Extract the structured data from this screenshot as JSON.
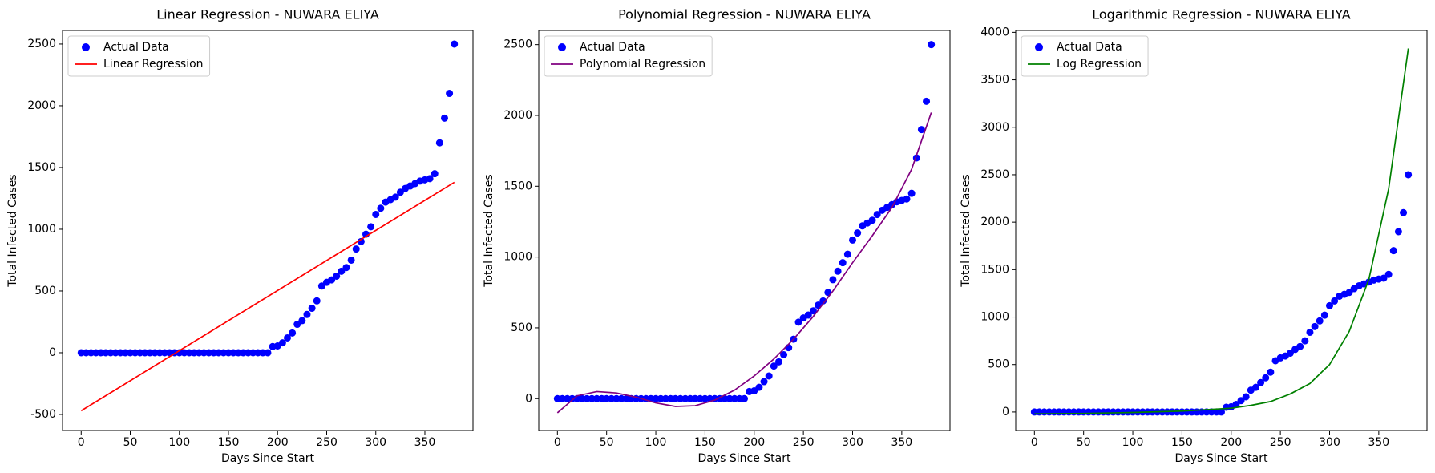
{
  "chart_data": [
    {
      "type": "scatter",
      "title": "Linear Regression - NUWARA ELIYA",
      "xlabel": "Days Since Start",
      "ylabel": "Total Infected Cases",
      "legend": "upper left",
      "xlim": [
        -19,
        399
      ],
      "xticks": [
        0,
        50,
        100,
        150,
        200,
        250,
        300,
        350
      ],
      "ylim": [
        -630,
        2610
      ],
      "yticks": [
        -500,
        0,
        500,
        1000,
        1500,
        2000,
        2500
      ],
      "series": [
        {
          "name": "Actual Data",
          "type": "scatter",
          "color": "#0000ff",
          "x": [
            0,
            5,
            10,
            15,
            20,
            25,
            30,
            35,
            40,
            45,
            50,
            55,
            60,
            65,
            70,
            75,
            80,
            85,
            90,
            95,
            100,
            105,
            110,
            115,
            120,
            125,
            130,
            135,
            140,
            145,
            150,
            155,
            160,
            165,
            170,
            175,
            180,
            185,
            190,
            195,
            200,
            205,
            210,
            215,
            220,
            225,
            230,
            235,
            240,
            245,
            250,
            255,
            260,
            265,
            270,
            275,
            280,
            285,
            290,
            295,
            300,
            305,
            310,
            315,
            320,
            325,
            330,
            335,
            340,
            345,
            350,
            355,
            360,
            365,
            370,
            375,
            380
          ],
          "values": [
            0,
            0,
            0,
            0,
            0,
            0,
            0,
            0,
            0,
            0,
            0,
            0,
            0,
            0,
            0,
            0,
            0,
            0,
            0,
            0,
            0,
            0,
            0,
            0,
            0,
            0,
            0,
            0,
            0,
            0,
            0,
            0,
            0,
            0,
            0,
            0,
            0,
            0,
            0,
            50,
            55,
            80,
            120,
            160,
            230,
            260,
            310,
            360,
            420,
            540,
            570,
            590,
            620,
            660,
            690,
            750,
            840,
            900,
            960,
            1020,
            1120,
            1170,
            1220,
            1240,
            1260,
            1300,
            1330,
            1350,
            1370,
            1390,
            1400,
            1410,
            1450,
            1700,
            1900,
            2100,
            2500
          ]
        },
        {
          "name": "Linear Regression",
          "type": "line",
          "color": "#ff0000",
          "x": [
            0,
            380
          ],
          "values": [
            -470,
            1380
          ]
        }
      ]
    },
    {
      "type": "scatter",
      "title": "Polynomial Regression - NUWARA ELIYA",
      "xlabel": "Days Since Start",
      "ylabel": "Total Infected Cases",
      "legend": "upper left",
      "xlim": [
        -19,
        399
      ],
      "xticks": [
        0,
        50,
        100,
        150,
        200,
        250,
        300,
        350
      ],
      "ylim": [
        -225,
        2600
      ],
      "yticks": [
        0,
        500,
        1000,
        1500,
        2000,
        2500
      ],
      "series": [
        {
          "name": "Actual Data",
          "type": "scatter",
          "color": "#0000ff",
          "x": [
            0,
            5,
            10,
            15,
            20,
            25,
            30,
            35,
            40,
            45,
            50,
            55,
            60,
            65,
            70,
            75,
            80,
            85,
            90,
            95,
            100,
            105,
            110,
            115,
            120,
            125,
            130,
            135,
            140,
            145,
            150,
            155,
            160,
            165,
            170,
            175,
            180,
            185,
            190,
            195,
            200,
            205,
            210,
            215,
            220,
            225,
            230,
            235,
            240,
            245,
            250,
            255,
            260,
            265,
            270,
            275,
            280,
            285,
            290,
            295,
            300,
            305,
            310,
            315,
            320,
            325,
            330,
            335,
            340,
            345,
            350,
            355,
            360,
            365,
            370,
            375,
            380
          ],
          "values": [
            0,
            0,
            0,
            0,
            0,
            0,
            0,
            0,
            0,
            0,
            0,
            0,
            0,
            0,
            0,
            0,
            0,
            0,
            0,
            0,
            0,
            0,
            0,
            0,
            0,
            0,
            0,
            0,
            0,
            0,
            0,
            0,
            0,
            0,
            0,
            0,
            0,
            0,
            0,
            50,
            55,
            80,
            120,
            160,
            230,
            260,
            310,
            360,
            420,
            540,
            570,
            590,
            620,
            660,
            690,
            750,
            840,
            900,
            960,
            1020,
            1120,
            1170,
            1220,
            1240,
            1260,
            1300,
            1330,
            1350,
            1370,
            1390,
            1400,
            1410,
            1450,
            1700,
            1900,
            2100,
            2500
          ]
        },
        {
          "name": "Polynomial Regression",
          "type": "line",
          "color": "#800080",
          "x": [
            0,
            20,
            40,
            60,
            80,
            100,
            120,
            140,
            160,
            180,
            200,
            220,
            240,
            260,
            280,
            300,
            320,
            340,
            360,
            380
          ],
          "values": [
            -100,
            20,
            50,
            40,
            10,
            -30,
            -55,
            -50,
            -10,
            60,
            160,
            280,
            420,
            580,
            760,
            960,
            1150,
            1350,
            1620,
            2020
          ]
        }
      ]
    },
    {
      "type": "scatter",
      "title": "Logarithmic Regression - NUWARA ELIYA",
      "xlabel": "Days Since Start",
      "ylabel": "Total Infected Cases",
      "legend": "upper left",
      "xlim": [
        -19,
        399
      ],
      "xticks": [
        0,
        50,
        100,
        150,
        200,
        250,
        300,
        350
      ],
      "ylim": [
        -195,
        4020
      ],
      "yticks": [
        0,
        500,
        1000,
        1500,
        2000,
        2500,
        3000,
        3500,
        4000
      ],
      "series": [
        {
          "name": "Actual Data",
          "type": "scatter",
          "color": "#0000ff",
          "x": [
            0,
            5,
            10,
            15,
            20,
            25,
            30,
            35,
            40,
            45,
            50,
            55,
            60,
            65,
            70,
            75,
            80,
            85,
            90,
            95,
            100,
            105,
            110,
            115,
            120,
            125,
            130,
            135,
            140,
            145,
            150,
            155,
            160,
            165,
            170,
            175,
            180,
            185,
            190,
            195,
            200,
            205,
            210,
            215,
            220,
            225,
            230,
            235,
            240,
            245,
            250,
            255,
            260,
            265,
            270,
            275,
            280,
            285,
            290,
            295,
            300,
            305,
            310,
            315,
            320,
            325,
            330,
            335,
            340,
            345,
            350,
            355,
            360,
            365,
            370,
            375,
            380
          ],
          "values": [
            0,
            0,
            0,
            0,
            0,
            0,
            0,
            0,
            0,
            0,
            0,
            0,
            0,
            0,
            0,
            0,
            0,
            0,
            0,
            0,
            0,
            0,
            0,
            0,
            0,
            0,
            0,
            0,
            0,
            0,
            0,
            0,
            0,
            0,
            0,
            0,
            0,
            0,
            0,
            50,
            55,
            80,
            120,
            160,
            230,
            260,
            310,
            360,
            420,
            540,
            570,
            590,
            620,
            660,
            690,
            750,
            840,
            900,
            960,
            1020,
            1120,
            1170,
            1220,
            1240,
            1260,
            1300,
            1330,
            1350,
            1370,
            1390,
            1400,
            1410,
            1450,
            1700,
            1900,
            2100,
            2500
          ]
        },
        {
          "name": "Log Regression",
          "type": "line",
          "color": "#008000",
          "x": [
            0,
            50,
            100,
            150,
            200,
            220,
            240,
            260,
            280,
            300,
            320,
            340,
            360,
            380
          ],
          "values": [
            -20,
            -15,
            -5,
            10,
            40,
            70,
            110,
            190,
            300,
            500,
            850,
            1400,
            2350,
            3830
          ]
        }
      ]
    }
  ]
}
